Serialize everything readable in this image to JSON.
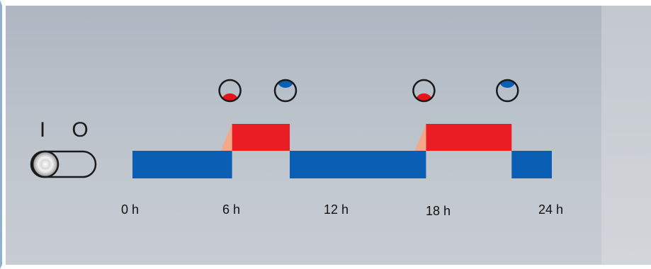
{
  "timeline": {
    "ticks": [
      "0 h",
      "6 h",
      "12 h",
      "18 h",
      "24 h"
    ],
    "segments": [
      {
        "state": "low",
        "from": 0,
        "to": 5.7
      },
      {
        "state": "high",
        "from": 5.7,
        "to": 9.0
      },
      {
        "state": "low",
        "from": 9.0,
        "to": 16.8
      },
      {
        "state": "high",
        "from": 16.8,
        "to": 21.7
      },
      {
        "state": "low",
        "from": 21.7,
        "to": 24.0
      }
    ],
    "ramps": [
      5.7,
      16.8
    ],
    "markers": [
      {
        "type": "heat",
        "at": 5.7
      },
      {
        "type": "cool",
        "at": 9.0
      },
      {
        "type": "heat",
        "at": 16.8
      },
      {
        "type": "cool",
        "at": 21.7
      }
    ]
  },
  "switch": {
    "on_symbol": "I",
    "off_symbol": "O"
  },
  "colors": {
    "low": "#0a5fb4",
    "high": "#ea1c24",
    "ramp": "#f4a889",
    "heat_dot": "#e8141c",
    "cool_dot": "#0a5fb4",
    "icon_stroke": "#1a1a1a"
  }
}
